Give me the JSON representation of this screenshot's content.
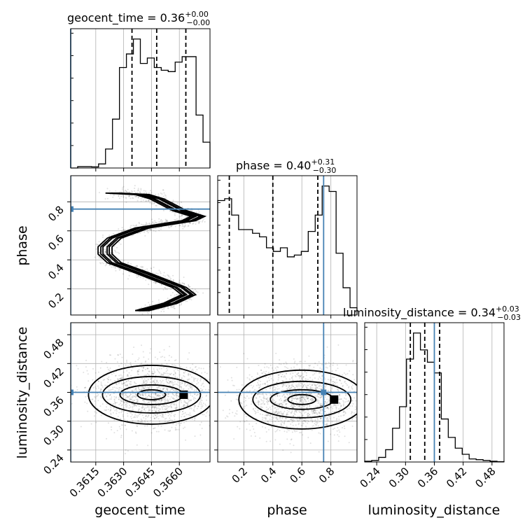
{
  "chart_data": {
    "type": "corner",
    "parameters": [
      {
        "name": "geocent_time",
        "label": "geocent_time",
        "title": "geocent_time = 0.36",
        "sup": "+0.00",
        "sub": "−0.00",
        "range": [
          0.36015,
          0.36765
        ],
        "ticks": [
          0.3615,
          0.363,
          0.3645,
          0.366
        ],
        "tick_labels": [
          "0.3615",
          "0.3630",
          "0.3645",
          "0.3660"
        ],
        "truth": 0.36015,
        "quantiles": [
          0.36345,
          0.36478,
          0.36635
        ],
        "hist": [
          0,
          0.1,
          0.1,
          0.08,
          0.3,
          1.4,
          3.6,
          7.4,
          8.4,
          9.5,
          7.7,
          8.1,
          7.4,
          7.2,
          7.1,
          7.8,
          8.2,
          8.2,
          3.9,
          1.9
        ]
      },
      {
        "name": "phase",
        "label": "phase",
        "title": "phase = 0.40",
        "sup": "+0.31",
        "sub": "−0.30",
        "range": [
          0.02,
          0.98
        ],
        "ticks": [
          0.2,
          0.4,
          0.6,
          0.8
        ],
        "tick_labels": [
          "0.2",
          "0.4",
          "0.6",
          "0.8"
        ],
        "truth": 0.75,
        "quantiles": [
          0.1,
          0.4,
          0.71
        ],
        "hist": [
          6.3,
          6.4,
          5.5,
          4.7,
          4.7,
          4.5,
          4.3,
          3.7,
          3.5,
          3.7,
          3.2,
          3.3,
          3.5,
          4.6,
          5.5,
          7.1,
          6.8,
          3.4,
          1.5,
          0.4
        ]
      },
      {
        "name": "luminosity_distance",
        "label": "luminosity_distance",
        "title": "luminosity_distance = 0.34",
        "sup": "+0.03",
        "sub": "−0.03",
        "range": [
          0.215,
          0.505
        ],
        "ticks": [
          0.24,
          0.3,
          0.36,
          0.42,
          0.48
        ],
        "tick_labels": [
          "0.24",
          "0.30",
          "0.36",
          "0.42",
          "0.48"
        ],
        "truth": 0.36,
        "quantiles": [
          0.31,
          0.34,
          0.371
        ],
        "hist": [
          0.05,
          0.1,
          0.3,
          0.8,
          2.2,
          3.6,
          6.7,
          8.4,
          7.3,
          6.5,
          5.8,
          2.8,
          1.6,
          0.9,
          0.5,
          0.2,
          0.15,
          0.1,
          0.05,
          0.02
        ]
      }
    ],
    "pairs": [
      {
        "x": "geocent_time",
        "y": "phase",
        "ridge": [
          [
            0.3624,
            0.86
          ],
          [
            0.364,
            0.85
          ],
          [
            0.3648,
            0.82
          ],
          [
            0.366,
            0.74
          ],
          [
            0.367,
            0.7
          ],
          [
            0.3665,
            0.67
          ],
          [
            0.365,
            0.64
          ],
          [
            0.364,
            0.62
          ],
          [
            0.3625,
            0.55
          ],
          [
            0.362,
            0.49
          ],
          [
            0.362,
            0.44
          ],
          [
            0.3625,
            0.38
          ],
          [
            0.364,
            0.31
          ],
          [
            0.365,
            0.26
          ],
          [
            0.366,
            0.21
          ],
          [
            0.3665,
            0.16
          ],
          [
            0.3655,
            0.1
          ],
          [
            0.364,
            0.05
          ]
        ]
      },
      {
        "x": "geocent_time",
        "y": "luminosity_distance",
        "center": [
          0.3645,
          0.355
        ]
      },
      {
        "x": "phase",
        "y": "luminosity_distance",
        "center": [
          0.6,
          0.345
        ]
      }
    ]
  }
}
